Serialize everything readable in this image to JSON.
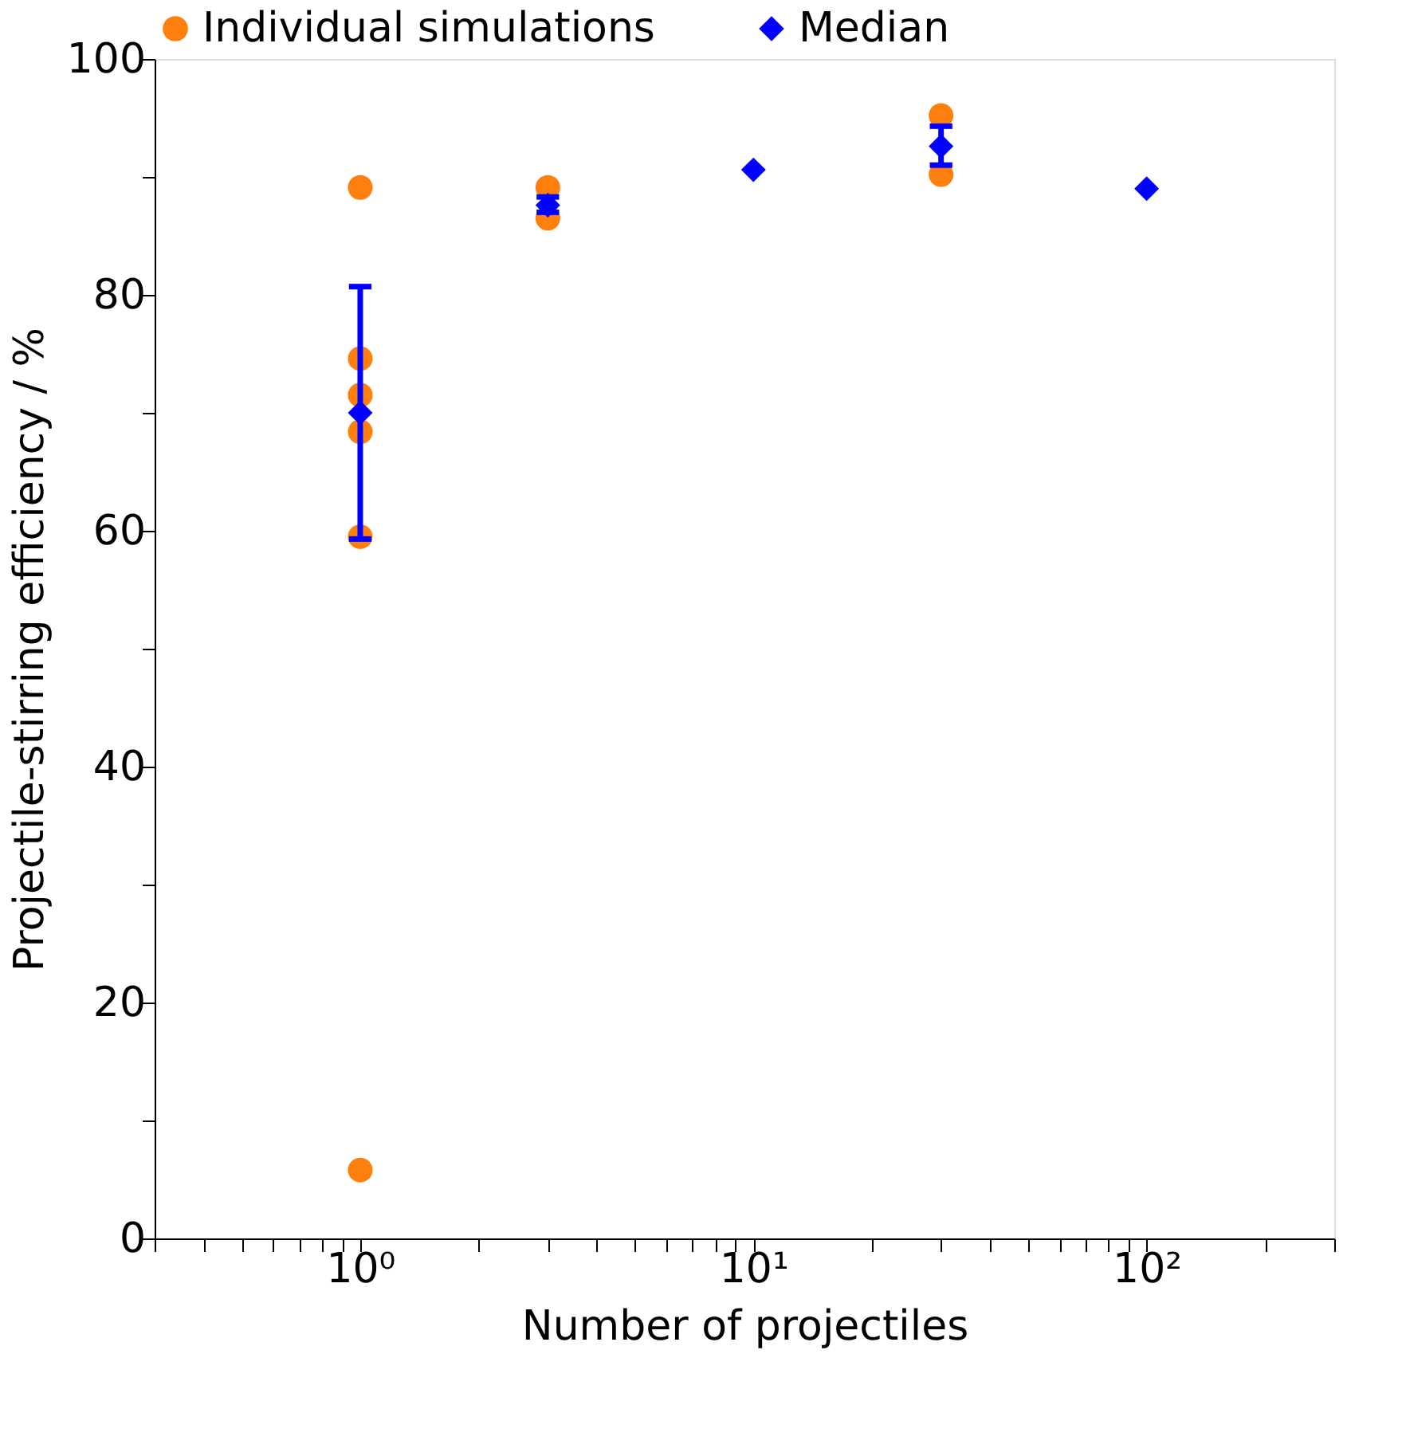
{
  "chart_data": {
    "type": "scatter",
    "xlabel": "Number of projectiles",
    "ylabel": "Projectile-stirring efficiency / %",
    "log": "x",
    "xlim": [
      0.3,
      300
    ],
    "ylim": [
      0,
      100
    ],
    "xticks": [
      {
        "value": 0.3,
        "label": null
      },
      {
        "value": 0.4,
        "label": null
      },
      {
        "value": 0.5,
        "label": null
      },
      {
        "value": 0.6,
        "label": null
      },
      {
        "value": 0.7,
        "label": null
      },
      {
        "value": 0.8,
        "label": null
      },
      {
        "value": 0.9,
        "label": null
      },
      {
        "value": 1,
        "label": "10⁰"
      },
      {
        "value": 2,
        "label": null
      },
      {
        "value": 3,
        "label": null
      },
      {
        "value": 4,
        "label": null
      },
      {
        "value": 5,
        "label": null
      },
      {
        "value": 6,
        "label": null
      },
      {
        "value": 7,
        "label": null
      },
      {
        "value": 8,
        "label": null
      },
      {
        "value": 9,
        "label": null
      },
      {
        "value": 10,
        "label": "10¹"
      },
      {
        "value": 20,
        "label": null
      },
      {
        "value": 30,
        "label": null
      },
      {
        "value": 40,
        "label": null
      },
      {
        "value": 50,
        "label": null
      },
      {
        "value": 60,
        "label": null
      },
      {
        "value": 70,
        "label": null
      },
      {
        "value": 80,
        "label": null
      },
      {
        "value": 90,
        "label": null
      },
      {
        "value": 100,
        "label": "10²"
      },
      {
        "value": 200,
        "label": null
      },
      {
        "value": 300,
        "label": null
      }
    ],
    "yticks": [
      0,
      {
        "value": 10,
        "label": null
      },
      20,
      {
        "value": 30,
        "label": null
      },
      40,
      {
        "value": 50,
        "label": null
      },
      60,
      {
        "value": 70,
        "label": null
      },
      80,
      {
        "value": 90,
        "label": null
      },
      100
    ],
    "grid": false,
    "legend": "top",
    "series": [
      {
        "name": "Individual simulations",
        "type": "scatter",
        "marker": "circle",
        "color": "#ff7f0e",
        "x": [
          1,
          1,
          1,
          1,
          1,
          1,
          3,
          3,
          30,
          30
        ],
        "values": [
          89.1,
          74.6,
          71.5,
          68.4,
          59.5,
          5.8,
          89.1,
          86.5,
          95.2,
          90.2
        ]
      },
      {
        "name": "Median",
        "type": "scatter",
        "marker": "diamond",
        "color": "#0000ff",
        "x": [
          1,
          3,
          10,
          30,
          100
        ],
        "values": [
          70.0,
          87.6,
          90.6,
          92.6,
          89.0
        ],
        "errors": [
          [
            59.3,
            80.7
          ],
          [
            87.0,
            88.3
          ],
          null,
          [
            91.0,
            94.3
          ],
          null
        ]
      }
    ]
  }
}
